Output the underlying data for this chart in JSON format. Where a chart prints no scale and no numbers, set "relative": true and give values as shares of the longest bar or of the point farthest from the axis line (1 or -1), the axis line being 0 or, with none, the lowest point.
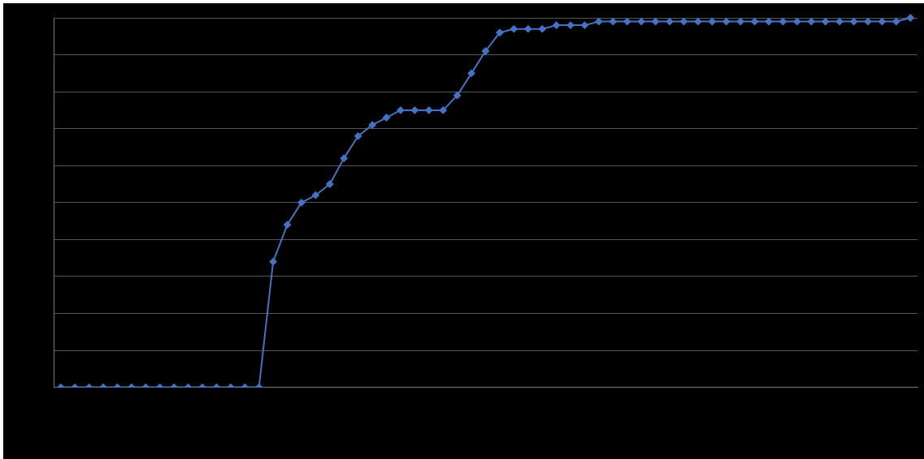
{
  "chart_data": {
    "type": "line",
    "relative": true,
    "grid": "y",
    "marker": "diamond",
    "line_style": "solid",
    "legend": false,
    "categories": [
      null,
      null,
      null,
      null,
      null,
      null,
      null,
      null,
      null,
      null,
      null,
      null,
      null,
      null,
      null,
      null,
      null,
      null,
      null,
      null,
      null,
      null,
      null,
      null,
      null,
      null,
      null,
      null,
      null,
      null,
      null,
      null,
      null,
      null,
      null,
      null,
      null,
      null,
      null,
      null,
      null,
      null,
      null,
      null,
      null,
      null,
      null,
      null,
      null,
      null,
      null,
      null,
      null,
      null,
      null,
      null,
      null,
      null,
      null,
      null,
      null
    ],
    "series": [
      {
        "color": "#4472c4",
        "values": [
          0,
          0,
          0,
          0,
          0,
          0,
          0,
          0,
          0,
          0,
          0,
          0,
          0,
          0,
          0,
          0.34,
          0.44,
          0.5,
          0.52,
          0.55,
          0.62,
          0.68,
          0.71,
          0.73,
          0.75,
          0.75,
          0.75,
          0.75,
          0.79,
          0.85,
          0.91,
          0.96,
          0.97,
          0.97,
          0.97,
          0.98,
          0.98,
          0.98,
          0.99,
          0.99,
          0.99,
          0.99,
          0.99,
          0.99,
          0.99,
          0.99,
          0.99,
          0.99,
          0.99,
          0.99,
          0.99,
          0.99,
          0.99,
          0.99,
          0.99,
          0.99,
          0.99,
          0.99,
          0.99,
          0.99,
          1
        ]
      }
    ]
  }
}
